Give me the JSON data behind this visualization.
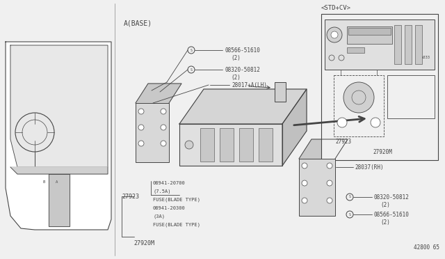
{
  "bg_color": "#f0f0f0",
  "line_color": "#444444",
  "fig_w": 6.4,
  "fig_h": 3.72,
  "title_main": "A(BASE)",
  "title_std": "<STD+CV>",
  "part_ref": "42800 65",
  "fs_small": 5.0,
  "fs_med": 5.5,
  "fs_large": 7.0
}
